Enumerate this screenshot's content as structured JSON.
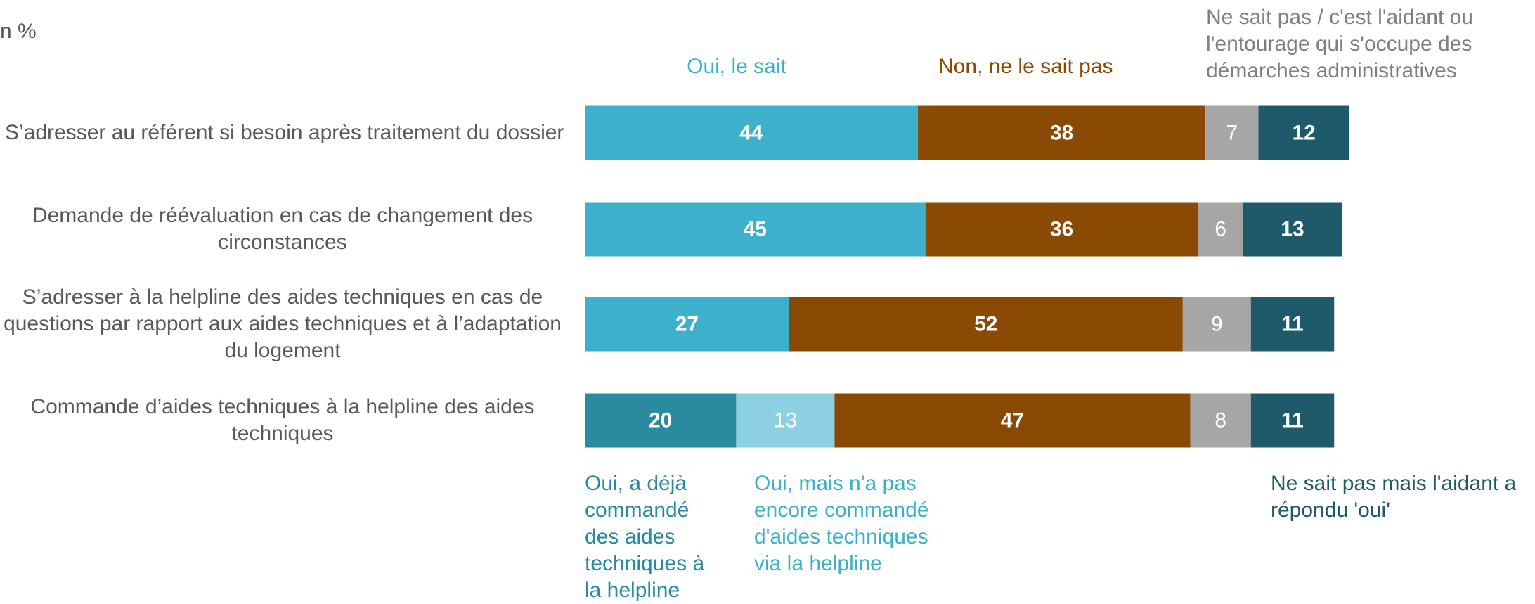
{
  "chart_data": {
    "type": "stacked-bar-horizontal",
    "unit_label": "n %",
    "categories": [
      "S’adresser au référent si besoin après traitement du dossier",
      "Demande de réévaluation en cas de changement des circonstances",
      "S’adresser à la helpline des aides techniques en cas de questions par rapport aux aides techniques et à l’adaptation du logement",
      "Commande d’aides techniques à la helpline des aides techniques"
    ],
    "series": [
      {
        "name": "Oui, le sait",
        "color": "#3db1cc",
        "values": [
          44,
          45,
          27,
          null
        ]
      },
      {
        "name": "Oui, a déjà commandé des aides techniques à la helpline",
        "color": "#2a8aa0",
        "values": [
          null,
          null,
          null,
          20
        ]
      },
      {
        "name": "Oui, mais n'a pas encore commandé d'aides techniques via la helpline",
        "color": "#8dd0e2",
        "values": [
          null,
          null,
          null,
          13
        ]
      },
      {
        "name": "Non, ne le sait pas",
        "color": "#8b4a03",
        "values": [
          38,
          36,
          52,
          47
        ]
      },
      {
        "name": "Ne sait pas / c'est l'aidant ou l'entourage qui s'occupe des démarches administratives",
        "color": "#a6a6a6",
        "values": [
          7,
          6,
          9,
          8
        ]
      },
      {
        "name": "Ne sait pas mais l'aidant a répondu 'oui'",
        "color": "#1e5a69",
        "values": [
          12,
          13,
          11,
          11
        ]
      }
    ]
  }
}
